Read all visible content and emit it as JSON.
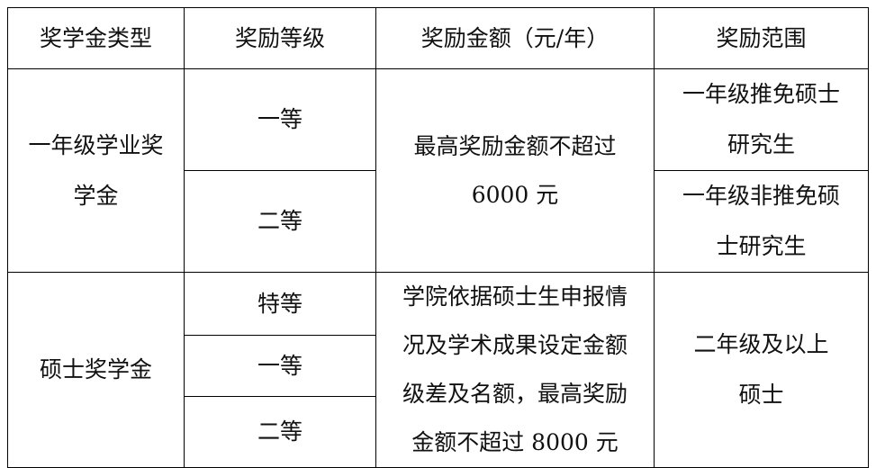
{
  "table": {
    "headers": [
      "奖学金类型",
      "奖励等级",
      "奖励金额（元/年）",
      "奖励范围"
    ],
    "groups": [
      {
        "type_lines": [
          "一年级学业奖",
          "学金"
        ],
        "levels": [
          "一等",
          "二等"
        ],
        "amount_lines": [
          "最高奖励金额不超过",
          "6000 元"
        ],
        "scopes": [
          {
            "lines": [
              "一年级推免硕士",
              "研究生"
            ]
          },
          {
            "lines": [
              "一年级非推免硕",
              "士研究生"
            ]
          }
        ]
      },
      {
        "type_lines": [
          "硕士奖学金"
        ],
        "levels": [
          "特等",
          "一等",
          "二等"
        ],
        "amount_lines": [
          "学院依据硕士生申报情",
          "况及学术成果设定金额",
          "级差及名额，最高奖励",
          "金额不超过 8000 元"
        ],
        "scope_lines": [
          "二年级及以上",
          "硕士"
        ]
      }
    ]
  }
}
